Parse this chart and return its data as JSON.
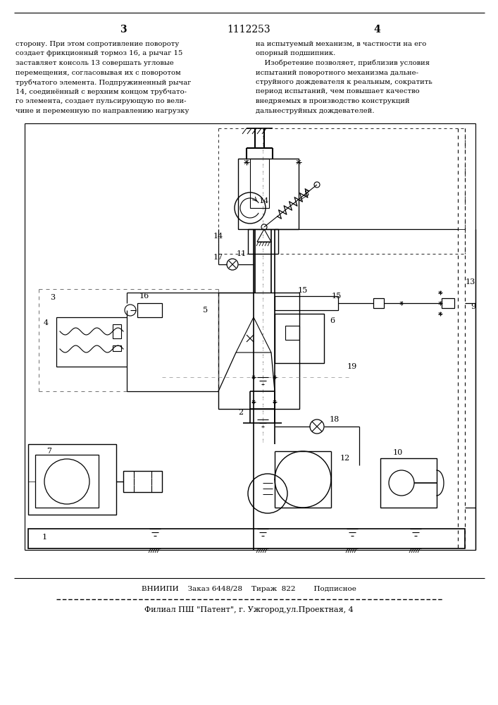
{
  "page_num_left": "3",
  "patent_num": "1112253",
  "page_num_right": "4",
  "text_left": "сторону. При этом сопротивление повороту\nсоздает фрикционный тормоз 16, а рычаг 15\nзаставляет консоль 13 совершать угловые\nперемещения, согласовывая их с поворотом\nтрубчатого элемента. Подпружиненный рычаг\n14, соединённый с верхним концом трубчато-\nго элемента, создает пульсирующую по вели-\nчине и переменную по направлению нагрузку",
  "text_right": "на испытуемый механизм, в частности на его\nопорный подшипник.\n    Изобретение позволяет, приблизив условия\nиспытаний поворотного механизма дальне-\nструйного дождевателя к реальным, сократить\nпериод испытаний, чем повышает качество\nвнедряемых в производство конструкций\nдальнеструйных дождевателей.",
  "footer_line1": "ВНИИПИ    Заказ 6448/28    Тираж  822        Подписное",
  "footer_line2": "Филиал ПШ \"Патент\", г. Ужгород,ул.Проектная, 4",
  "bg_color": "#ffffff",
  "text_color": "#000000"
}
